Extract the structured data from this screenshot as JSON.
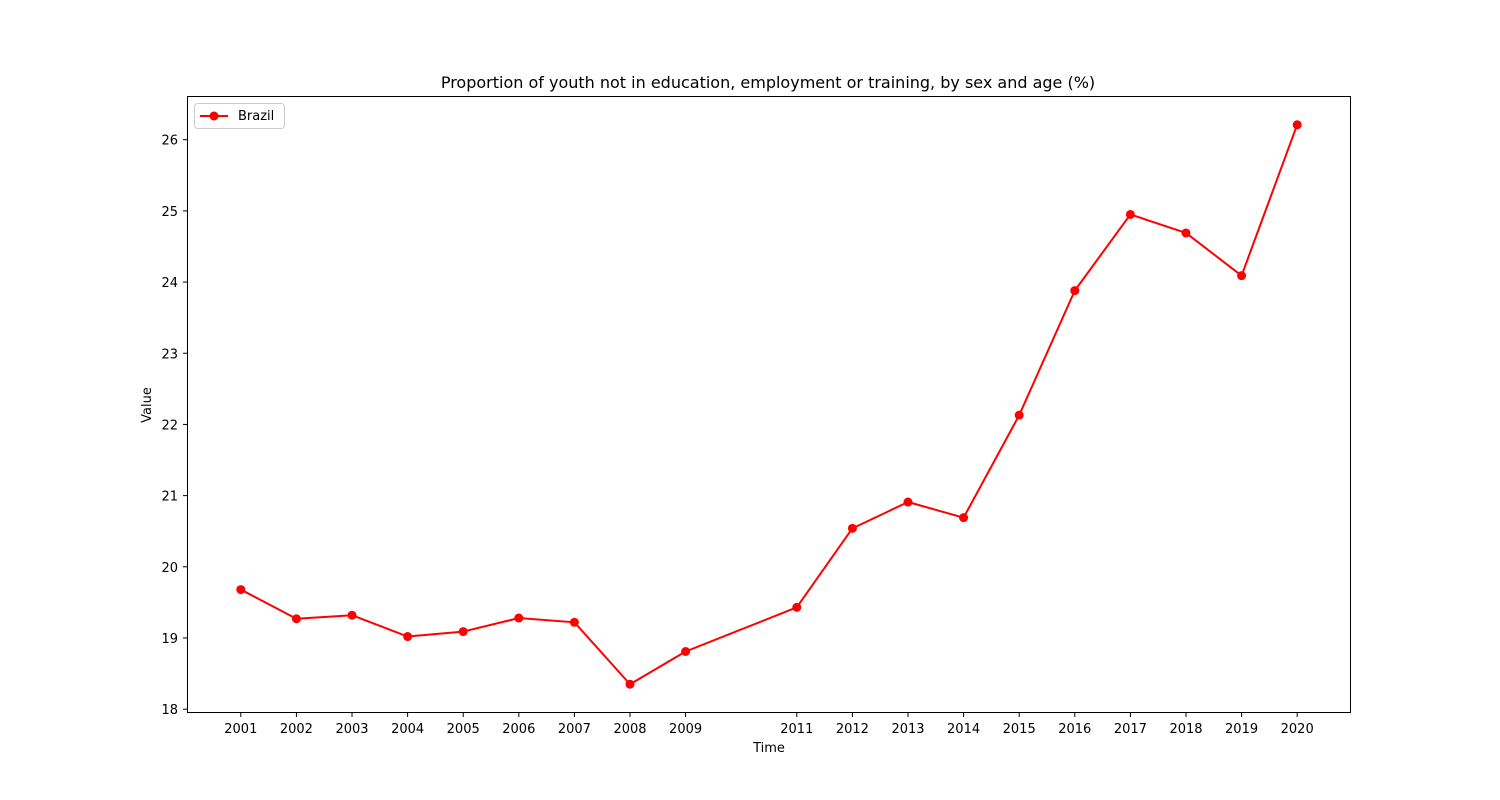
{
  "chart_data": {
    "type": "line",
    "title": "Proportion of youth not in education, employment or training, by sex and age (%)",
    "xlabel": "Time",
    "ylabel": "Value",
    "x": [
      2001,
      2002,
      2003,
      2004,
      2005,
      2006,
      2007,
      2008,
      2009,
      2011,
      2012,
      2013,
      2014,
      2015,
      2016,
      2017,
      2018,
      2019,
      2020
    ],
    "xticks": [
      "2001",
      "2002",
      "2003",
      "2004",
      "2005",
      "2006",
      "2007",
      "2008",
      "2009",
      "2011",
      "2012",
      "2013",
      "2014",
      "2015",
      "2016",
      "2017",
      "2018",
      "2019",
      "2020"
    ],
    "yticks": [
      "18",
      "19",
      "20",
      "21",
      "22",
      "23",
      "24",
      "25",
      "26"
    ],
    "ylim": [
      17.96,
      26.6
    ],
    "xlim": [
      2000.05,
      2020.95
    ],
    "grid": false,
    "legend_position": "top-left",
    "series": [
      {
        "name": "Brazil",
        "color": "#ff0000",
        "marker": "circle",
        "values": [
          19.68,
          19.27,
          19.32,
          19.02,
          19.09,
          19.28,
          19.22,
          18.35,
          18.81,
          19.43,
          20.54,
          20.91,
          20.69,
          22.13,
          23.88,
          24.95,
          24.69,
          24.09,
          26.21
        ]
      }
    ]
  }
}
